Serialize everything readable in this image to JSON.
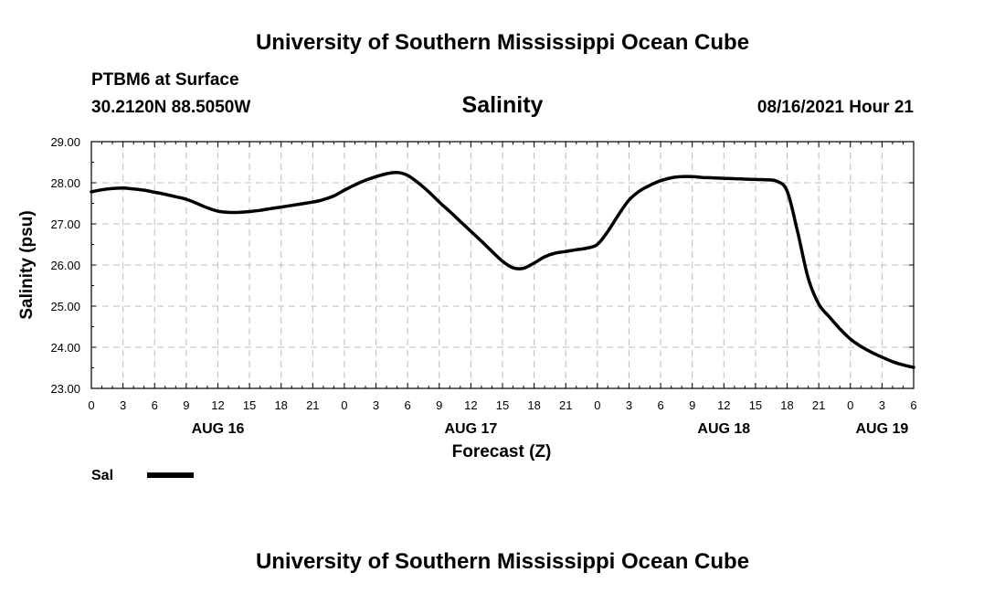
{
  "header": {
    "title_top": "University of Southern Mississippi Ocean Cube",
    "station": "PTBM6 at Surface",
    "coords": "30.2120N  88.5050W",
    "date_hour": "08/16/2021 Hour 21",
    "title_bottom": "University of Southern Mississippi Ocean Cube"
  },
  "chart_data": {
    "type": "line",
    "title": "Salinity",
    "xlabel": "Forecast (Z)",
    "ylabel": "Salinity (psu)",
    "ylim": [
      23.0,
      29.0
    ],
    "xlim_hours": [
      0,
      78
    ],
    "y_ticks": [
      "23.00",
      "24.00",
      "25.00",
      "26.00",
      "27.00",
      "28.00",
      "29.00"
    ],
    "x_ticks": [
      {
        "hour": 0,
        "label": "0"
      },
      {
        "hour": 3,
        "label": "3"
      },
      {
        "hour": 6,
        "label": "6"
      },
      {
        "hour": 9,
        "label": "9"
      },
      {
        "hour": 12,
        "label": "12"
      },
      {
        "hour": 15,
        "label": "15"
      },
      {
        "hour": 18,
        "label": "18"
      },
      {
        "hour": 21,
        "label": "21"
      },
      {
        "hour": 24,
        "label": "0"
      },
      {
        "hour": 27,
        "label": "3"
      },
      {
        "hour": 30,
        "label": "6"
      },
      {
        "hour": 33,
        "label": "9"
      },
      {
        "hour": 36,
        "label": "12"
      },
      {
        "hour": 39,
        "label": "15"
      },
      {
        "hour": 42,
        "label": "18"
      },
      {
        "hour": 45,
        "label": "21"
      },
      {
        "hour": 48,
        "label": "0"
      },
      {
        "hour": 51,
        "label": "3"
      },
      {
        "hour": 54,
        "label": "6"
      },
      {
        "hour": 57,
        "label": "9"
      },
      {
        "hour": 60,
        "label": "12"
      },
      {
        "hour": 63,
        "label": "15"
      },
      {
        "hour": 66,
        "label": "18"
      },
      {
        "hour": 69,
        "label": "21"
      },
      {
        "hour": 72,
        "label": "0"
      },
      {
        "hour": 75,
        "label": "3"
      },
      {
        "hour": 78,
        "label": "6"
      }
    ],
    "date_labels": [
      {
        "hour": 12,
        "label": "AUG 16"
      },
      {
        "hour": 36,
        "label": "AUG 17"
      },
      {
        "hour": 60,
        "label": "AUG 18"
      },
      {
        "hour": 75,
        "label": "AUG 19"
      }
    ],
    "grid": true,
    "legend": {
      "label": "Sal",
      "placement": "bottom-left"
    },
    "series": [
      {
        "name": "Sal",
        "x_hours": [
          0,
          1,
          2,
          3,
          4,
          5,
          6,
          7,
          8,
          9,
          10,
          11,
          12,
          13,
          14,
          15,
          16,
          17,
          18,
          19,
          20,
          21,
          22,
          23,
          24,
          25,
          26,
          27,
          28,
          29,
          30,
          31,
          32,
          33,
          34,
          35,
          36,
          37,
          38,
          39,
          40,
          41,
          42,
          43,
          44,
          45,
          46,
          47,
          48,
          49,
          50,
          51,
          52,
          53,
          54,
          55,
          56,
          57,
          58,
          59,
          60,
          61,
          62,
          63,
          64,
          65,
          66,
          67,
          68,
          69,
          70,
          71,
          72,
          73,
          74,
          75,
          76,
          77,
          78
        ],
        "values": [
          27.78,
          27.83,
          27.86,
          27.87,
          27.85,
          27.82,
          27.77,
          27.72,
          27.66,
          27.6,
          27.5,
          27.39,
          27.31,
          27.28,
          27.28,
          27.3,
          27.33,
          27.37,
          27.41,
          27.45,
          27.49,
          27.53,
          27.59,
          27.68,
          27.82,
          27.95,
          28.06,
          28.15,
          28.22,
          28.25,
          28.18,
          28.0,
          27.78,
          27.53,
          27.3,
          27.06,
          26.82,
          26.58,
          26.33,
          26.09,
          25.93,
          25.92,
          26.05,
          26.2,
          26.29,
          26.33,
          26.37,
          26.41,
          26.5,
          26.82,
          27.22,
          27.58,
          27.8,
          27.94,
          28.05,
          28.12,
          28.15,
          28.15,
          28.13,
          28.12,
          28.11,
          28.1,
          28.09,
          28.08,
          28.07,
          28.04,
          27.8,
          26.8,
          25.68,
          25.05,
          24.74,
          24.45,
          24.2,
          24.02,
          23.88,
          23.76,
          23.65,
          23.57,
          23.51
        ]
      }
    ]
  }
}
